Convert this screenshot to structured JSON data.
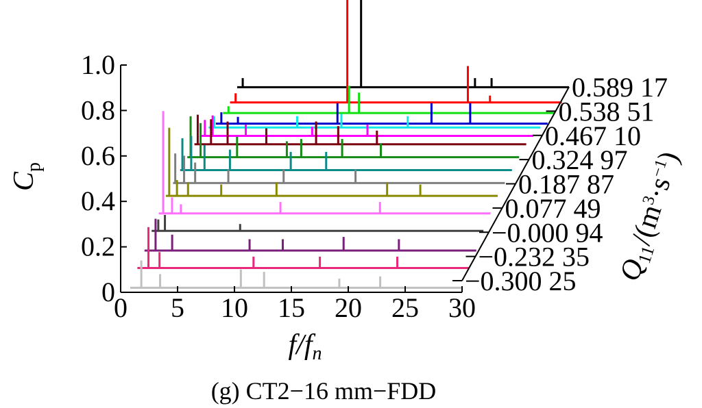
{
  "chart_data": {
    "type": "line",
    "subtype": "waterfall-3d",
    "caption": "(g) CT2−16 mm−FDD",
    "xlabel": {
      "f": "f",
      "slash": "/f",
      "sub": "n"
    },
    "ylabel": {
      "main": "C",
      "sub": "p"
    },
    "zlabel": {
      "main": "Q",
      "sub": "11",
      "rest": "/(m",
      "sup1": "3",
      "mid": "·s",
      "sup2": "−1",
      "end": ")"
    },
    "xlim": [
      0,
      30
    ],
    "ylim": [
      0,
      1.0
    ],
    "xticks": [
      "0",
      "5",
      "10",
      "15",
      "20",
      "25",
      "30"
    ],
    "yticks": [
      "0",
      "0.2",
      "0.4",
      "0.6",
      "0.8",
      "1.0"
    ],
    "z_tick_labels": [
      "−0.300 25",
      "−0.232 35",
      "−0.000 94",
      "0.077 49",
      "0.187 87",
      "0.324 97",
      "0.467 10",
      "0.538 51",
      "0.589 17"
    ],
    "series": [
      {
        "color": "#c0c0c0",
        "base": 0.02,
        "peaks": [
          [
            1.0,
            0.12
          ],
          [
            2.7,
            0.06
          ],
          [
            10.0,
            0.08
          ],
          [
            12.1,
            0.07
          ],
          [
            18.9,
            0.04
          ],
          [
            22.6,
            0.05
          ]
        ]
      },
      {
        "color": "#e8287a",
        "base": 0.05,
        "peaks": [
          [
            1.0,
            0.18
          ],
          [
            2.0,
            0.07
          ],
          [
            10.5,
            0.05
          ],
          [
            16.5,
            0.05
          ],
          [
            23.5,
            0.05
          ]
        ]
      },
      {
        "color": "#7a1f7a",
        "base": 0.07,
        "peaks": [
          [
            1.0,
            0.14
          ],
          [
            2.5,
            0.07
          ],
          [
            9.5,
            0.05
          ],
          [
            12.5,
            0.05
          ],
          [
            18.0,
            0.06
          ],
          [
            23.0,
            0.05
          ]
        ]
      },
      {
        "color": "#404040",
        "base": 0.1,
        "peaks": [
          [
            0.6,
            0.05
          ],
          [
            1.2,
            0.07
          ],
          [
            8.0,
            0.03
          ]
        ]
      },
      {
        "color": "#ff70ff",
        "base": 0.12,
        "peaks": [
          [
            0.4,
            0.45
          ],
          [
            1.2,
            0.07
          ],
          [
            2.0,
            0.04
          ],
          [
            11.0,
            0.05
          ],
          [
            20.0,
            0.05
          ]
        ]
      },
      {
        "color": "#8a8a00",
        "base": 0.14,
        "peaks": [
          [
            0.3,
            0.3
          ],
          [
            1.0,
            0.07
          ],
          [
            2.0,
            0.06
          ],
          [
            5.0,
            0.05
          ],
          [
            10.0,
            0.06
          ],
          [
            20.0,
            0.06
          ],
          [
            23.0,
            0.05
          ]
        ]
      },
      {
        "color": "#7f7f7f",
        "base": 0.14,
        "peaks": [
          [
            0.2,
            0.13
          ],
          [
            1.0,
            0.12
          ],
          [
            2.0,
            0.09
          ],
          [
            5.0,
            0.06
          ],
          [
            10.0,
            0.06
          ],
          [
            16.5,
            0.06
          ]
        ]
      },
      {
        "color": "#0a8a88",
        "base": 0.14,
        "peaks": [
          [
            0.2,
            0.14
          ],
          [
            1.0,
            0.15
          ],
          [
            2.2,
            0.11
          ],
          [
            4.5,
            0.09
          ],
          [
            10.0,
            0.08
          ],
          [
            13.2,
            0.08
          ]
        ]
      },
      {
        "color": "#168a16",
        "base": 0.14,
        "peaks": [
          [
            0.3,
            0.18
          ],
          [
            1.2,
            0.15
          ],
          [
            4.5,
            0.09
          ],
          [
            9.0,
            0.07
          ],
          [
            10.3,
            0.08
          ],
          [
            14.0,
            0.08
          ],
          [
            17.5,
            0.06
          ]
        ]
      },
      {
        "color": "#7a0010",
        "base": 0.14,
        "peaks": [
          [
            0.3,
            0.13
          ],
          [
            1.5,
            0.11
          ],
          [
            3.0,
            0.1
          ],
          [
            6.5,
            0.07
          ],
          [
            11.0,
            0.1
          ],
          [
            13.0,
            0.08
          ],
          [
            16.5,
            0.06
          ]
        ]
      },
      {
        "color": "#ff00ff",
        "base": 0.12,
        "peaks": [
          [
            0.3,
            0.07
          ],
          [
            1.0,
            0.09
          ],
          [
            4.0,
            0.05
          ],
          [
            10.0,
            0.04
          ],
          [
            15.0,
            0.05
          ]
        ]
      },
      {
        "color": "#10e8e8",
        "base": 0.1,
        "peaks": [
          [
            0.5,
            0.05
          ],
          [
            8.0,
            0.05
          ],
          [
            12.0,
            0.06
          ],
          [
            18.0,
            0.05
          ]
        ]
      },
      {
        "color": "#0000cc",
        "base": 0.06,
        "peaks": [
          [
            0.5,
            0.05
          ],
          [
            2.0,
            0.03
          ],
          [
            11.0,
            0.09
          ],
          [
            19.5,
            0.09
          ],
          [
            23.0,
            0.09
          ]
        ]
      },
      {
        "color": "#10e010",
        "base": 0.05,
        "peaks": [
          [
            0.5,
            0.03
          ],
          [
            11.4,
            0.12
          ],
          [
            12.3,
            0.09
          ]
        ]
      },
      {
        "color": "#ff0000",
        "base": 0.04,
        "peaks": [
          [
            0.5,
            0.04
          ],
          [
            10.6,
            0.78
          ],
          [
            21.5,
            0.16
          ],
          [
            23.5,
            0.03
          ]
        ]
      },
      {
        "color": "#000000",
        "base": 0.05,
        "peaks": [
          [
            0.5,
            0.04
          ],
          [
            11.2,
            0.87
          ],
          [
            21.5,
            0.04
          ],
          [
            23.0,
            0.04
          ]
        ]
      }
    ]
  }
}
